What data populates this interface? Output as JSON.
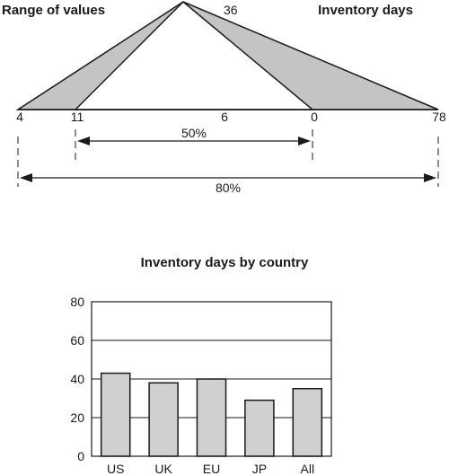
{
  "chart_data": [
    {
      "type": "diagram",
      "title_left": "Range of values",
      "title_right": "Inventory days",
      "apex_label": "36",
      "axis_labels": [
        "4",
        "11",
        "6",
        "0",
        "78"
      ],
      "inner_range_label": "50%",
      "outer_range_label": "80%"
    },
    {
      "type": "bar",
      "title": "Inventory days by country",
      "categories": [
        "US",
        "UK",
        "EU",
        "JP",
        "All"
      ],
      "values": [
        43,
        38,
        40,
        29,
        35
      ],
      "ylim": [
        0,
        80
      ],
      "yticks": [
        "0",
        "20",
        "40",
        "60",
        "80"
      ],
      "grid": true,
      "colors": {
        "bar_fill": "#d0d0d0",
        "stroke": "#1a1a1a",
        "triangle_fill": "#c4c4c4"
      }
    }
  ]
}
